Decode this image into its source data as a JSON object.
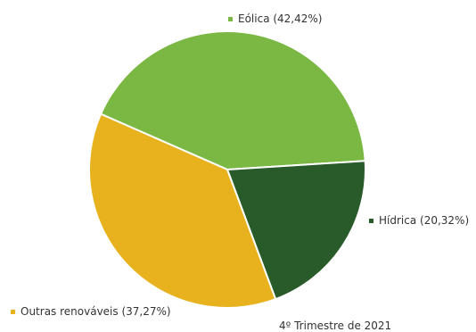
{
  "chart_data": {
    "type": "pie",
    "caption": "4º Trimestre de 2021",
    "slices": [
      {
        "name": "Eólica",
        "value": 42.42,
        "label": "Eólica (42,42%)",
        "color": "#7ab843"
      },
      {
        "name": "Hídrica",
        "value": 20.32,
        "label": "Hídrica (20,32%)",
        "color": "#285a2a"
      },
      {
        "name": "Outras renováveis",
        "value": 37.27,
        "label": "Outras renováveis (37,27%)",
        "color": "#e8b21f"
      }
    ],
    "legend": "labels-outside",
    "edge_color": "#ffffff"
  }
}
